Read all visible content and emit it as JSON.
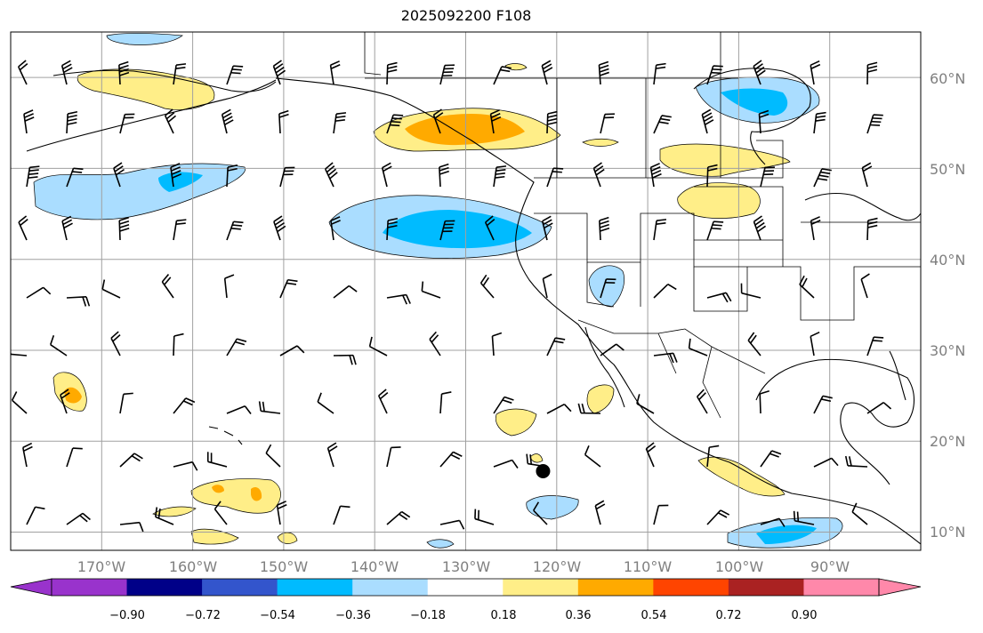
{
  "title": "2025092200 F108",
  "map": {
    "lon_range": [
      -180,
      -80
    ],
    "lat_range": [
      8,
      65
    ],
    "lat_labels": [
      "60°N",
      "50°N",
      "40°N",
      "30°N",
      "20°N",
      "10°N"
    ],
    "lon_labels": [
      "170°W",
      "160°W",
      "150°W",
      "140°W",
      "130°W",
      "120°W",
      "110°W",
      "100°W",
      "90°W"
    ],
    "grid": true,
    "marker": {
      "lon": -121.5,
      "lat": 16.7
    }
  },
  "colorbar": {
    "colors": [
      "#9933cc",
      "#000088",
      "#3355cc",
      "#00bbff",
      "#aaddff",
      "#ffffff",
      "#ffee88",
      "#ffaa00",
      "#ff4400",
      "#aa2222",
      "#ff88aa"
    ],
    "tick_labels": [
      "−0.90",
      "−0.72",
      "−0.54",
      "−0.36",
      "−0.18",
      "0.18",
      "0.36",
      "0.54",
      "0.72",
      "0.90"
    ]
  },
  "contour_colors": {
    "pale_blue": "#aaddff",
    "blue": "#00bbff",
    "yellow": "#ffee88",
    "orange": "#ffaa00"
  }
}
